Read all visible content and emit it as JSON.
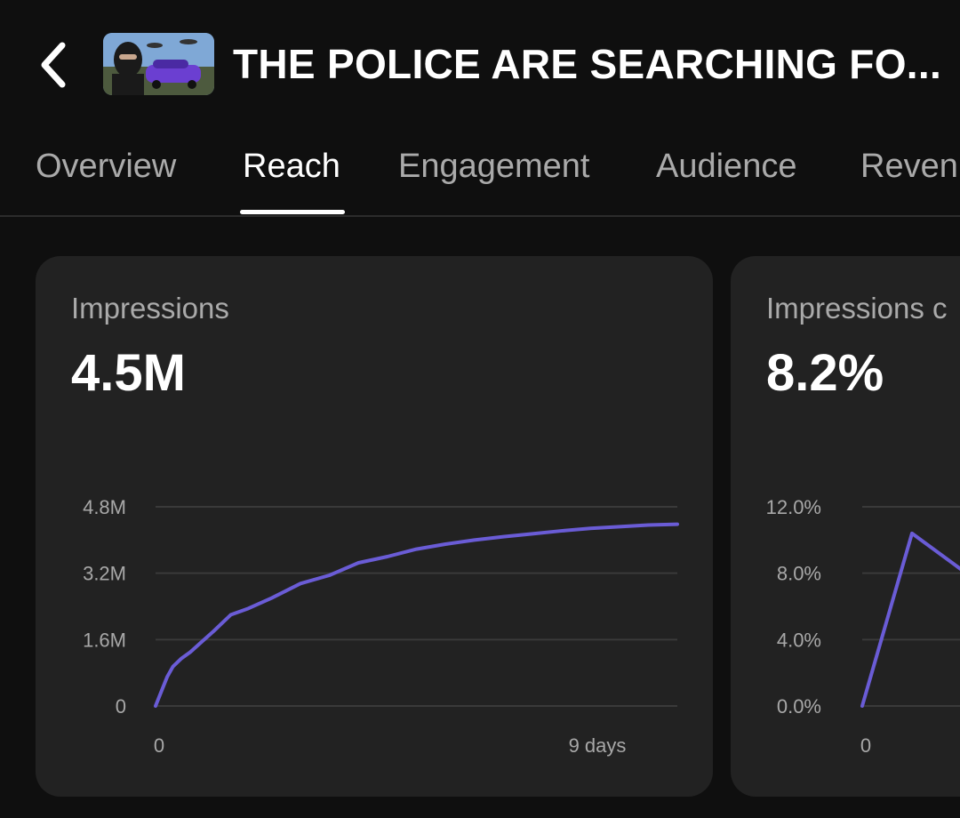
{
  "header": {
    "title": "THE POLICE ARE SEARCHING FO...",
    "back_icon": "chevron-left-icon",
    "thumbnail_icon": "video-thumbnail"
  },
  "tabs": [
    {
      "label": "Overview",
      "active": false
    },
    {
      "label": "Reach",
      "active": true
    },
    {
      "label": "Engagement",
      "active": false
    },
    {
      "label": "Audience",
      "active": false
    },
    {
      "label": "Reven",
      "active": false
    }
  ],
  "cards": [
    {
      "label": "Impressions",
      "value": "4.5M"
    },
    {
      "label": "Impressions c",
      "value": "8.2%"
    }
  ],
  "colors": {
    "background": "#0f0f0f",
    "card": "#222222",
    "line": "#6a5cd6",
    "gridline": "#3a3a3a",
    "muted_text": "#aaaaaa"
  },
  "chart_data": [
    {
      "type": "line",
      "x_tick_labels": [
        "0",
        "9 days"
      ],
      "y_tick_labels": [
        "0",
        "1.6M",
        "3.2M",
        "4.8M"
      ],
      "y_ticks": [
        0,
        1.6,
        3.2,
        4.8
      ],
      "xlim": [
        0,
        9
      ],
      "ylim": [
        0,
        4.8
      ],
      "grid": true,
      "x": [
        0,
        0.1,
        0.2,
        0.3,
        0.45,
        0.6,
        0.8,
        1.0,
        1.3,
        1.6,
        2.0,
        2.5,
        3.0,
        3.5,
        4.0,
        4.5,
        5.0,
        5.5,
        6.0,
        6.5,
        7.0,
        7.5,
        8.0,
        8.5,
        9.0
      ],
      "series": [
        {
          "values": [
            0,
            0.35,
            0.7,
            0.95,
            1.15,
            1.3,
            1.55,
            1.8,
            2.2,
            2.35,
            2.6,
            2.95,
            3.15,
            3.45,
            3.6,
            3.78,
            3.9,
            4.0,
            4.08,
            4.15,
            4.22,
            4.28,
            4.32,
            4.36,
            4.38
          ]
        }
      ]
    },
    {
      "type": "line",
      "x_tick_labels": [
        "0"
      ],
      "y_tick_labels": [
        "0.0%",
        "4.0%",
        "8.0%",
        "12.0%"
      ],
      "y_ticks": [
        0,
        4,
        8,
        12
      ],
      "xlim": [
        0,
        9
      ],
      "ylim": [
        0,
        12
      ],
      "grid": true,
      "x": [
        0,
        1,
        2
      ],
      "series": [
        {
          "values": [
            0,
            10.4,
            8.2
          ]
        }
      ]
    }
  ]
}
